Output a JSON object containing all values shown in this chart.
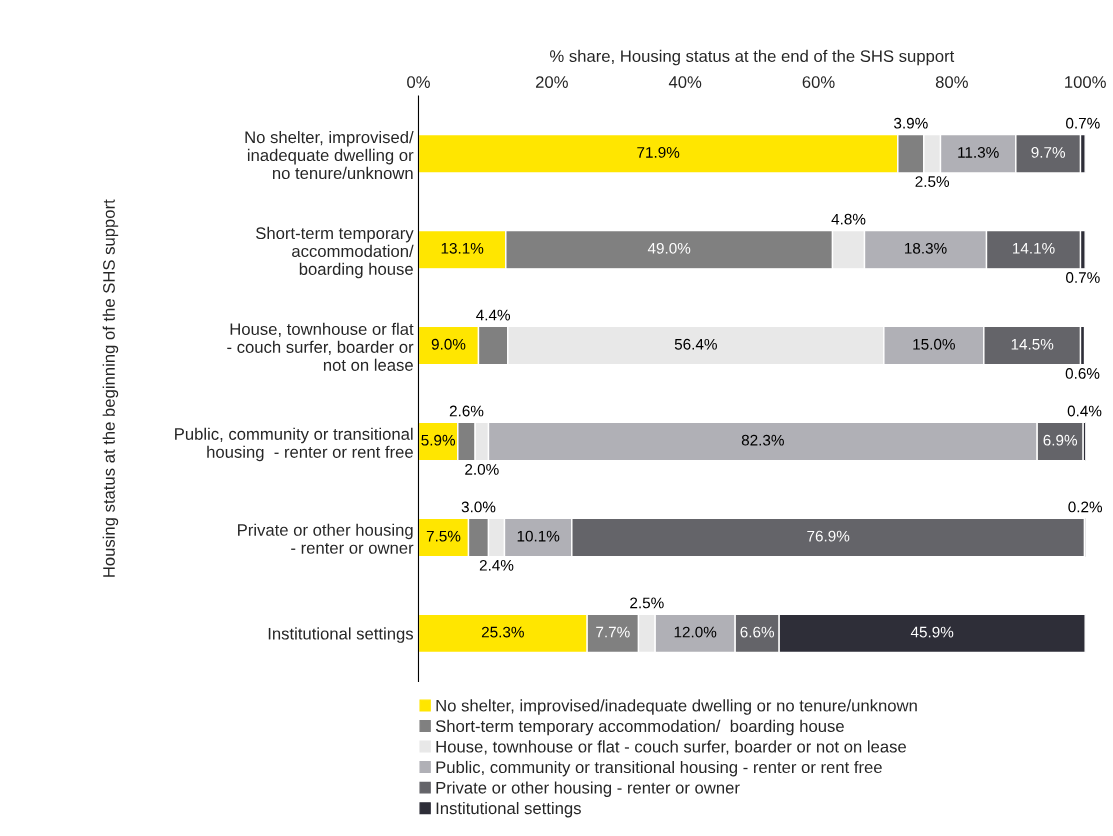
{
  "chart_data": {
    "type": "bar",
    "orientation": "horizontal",
    "stacked": true,
    "xlabel": "% share, Housing status at the end of the SHS support",
    "ylabel": "Housing status at the beginning of the SHS support",
    "categories": [
      "No shelter, improvised/\ninadequate dwelling or\nno tenure/unknown",
      "Short-term temporary\naccommodation/\nboarding house",
      "House, townhouse or flat\n- couch surfer, boarder or\nnot on lease",
      "Public, community or transitional\nhousing  - renter or rent free",
      "Private or other housing\n- renter or owner",
      "Institutional settings"
    ],
    "series": [
      {
        "name": "No shelter, improvised/inadequate dwelling or no tenure/unknown",
        "color": "#ffe600",
        "values": [
          71.9,
          13.1,
          9.0,
          5.9,
          7.5,
          25.3
        ],
        "value_labels": [
          "71.9%",
          "13.1%",
          "9.0%",
          "5.9%",
          "7.5%",
          "25.3%"
        ]
      },
      {
        "name": "Short-term temporary accommodation/  boarding house",
        "color": "#808080",
        "values": [
          3.9,
          49.0,
          4.4,
          2.6,
          3.0,
          7.7
        ],
        "value_labels": [
          "3.9%",
          "49.0%",
          "4.4%",
          "2.6%",
          "3.0%",
          "7.7%"
        ]
      },
      {
        "name": "House, townhouse or flat - couch surfer, boarder or not on lease",
        "color": "#e8e8e8",
        "values": [
          2.5,
          4.8,
          56.4,
          2.0,
          2.4,
          2.5
        ],
        "value_labels": [
          "2.5%",
          "4.8%",
          "56.4%",
          "2.0%",
          "2.4%",
          "2.5%"
        ]
      },
      {
        "name": "Public, community or transitional housing - renter or rent free",
        "color": "#b0b0b6",
        "values": [
          11.3,
          18.3,
          15.0,
          82.3,
          10.1,
          12.0
        ],
        "value_labels": [
          "11.3%",
          "18.3%",
          "15.0%",
          "82.3%",
          "10.1%",
          "12.0%"
        ]
      },
      {
        "name": "Private or other housing - renter or owner",
        "color": "#646469",
        "values": [
          9.7,
          14.1,
          14.5,
          6.9,
          76.9,
          6.6
        ],
        "value_labels": [
          "9.7%",
          "14.1%",
          "14.5%",
          "6.9%",
          "76.9%",
          "6.6%"
        ]
      },
      {
        "name": "Institutional settings",
        "color": "#2e2e38",
        "values": [
          0.7,
          0.7,
          0.6,
          0.4,
          0.2,
          45.9
        ],
        "value_labels": [
          "0.7%",
          "0.7%",
          "0.6%",
          "0.4%",
          "0.2%",
          "45.9%"
        ]
      }
    ],
    "xlim": [
      0,
      100
    ],
    "xticks": [
      {
        "value": 0,
        "label": "0%"
      },
      {
        "value": 20,
        "label": "20%"
      },
      {
        "value": 40,
        "label": "40%"
      },
      {
        "value": 60,
        "label": "60%"
      },
      {
        "value": 80,
        "label": "80%"
      },
      {
        "value": 100,
        "label": "100%"
      }
    ],
    "legend": "bottom",
    "grid": false
  }
}
